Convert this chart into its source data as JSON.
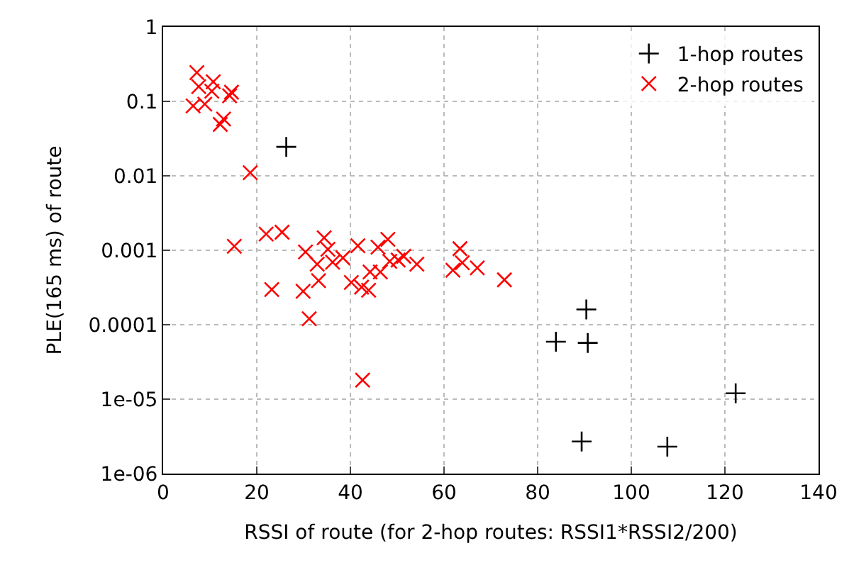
{
  "chart_data": {
    "type": "scatter",
    "xlabel": "RSSI of route (for 2-hop routes: RSSI1*RSSI2/200)",
    "ylabel": "PLE(165 ms) of route",
    "log": "y",
    "grid": true,
    "legend": "top right",
    "xlim": [
      0,
      140
    ],
    "xticks": [
      0,
      20,
      40,
      60,
      80,
      100,
      120,
      140
    ],
    "ylim": [
      1e-06,
      1
    ],
    "yticks": [
      {
        "value": 1e-06,
        "label": "1e-06"
      },
      {
        "value": 1e-05,
        "label": "1e-05"
      },
      {
        "value": 0.0001,
        "label": "0.0001"
      },
      {
        "value": 0.001,
        "label": "0.001"
      },
      {
        "value": 0.01,
        "label": "0.01"
      },
      {
        "value": 0.1,
        "label": "0.1"
      },
      {
        "value": 1,
        "label": "1"
      }
    ],
    "series": [
      {
        "name": "1-hop routes",
        "color": "#000000",
        "marker": "cross",
        "x": [
          26.3,
          90.4,
          83.9,
          90.7,
          122.3,
          89.4,
          107.7
        ],
        "values": [
          0.0245,
          0.00016,
          5.9e-05,
          5.7e-05,
          1.2e-05,
          2.7e-06,
          2.3e-06
        ]
      },
      {
        "name": "2-hop routes",
        "color": "#ff0000",
        "marker": "x",
        "x": [
          7.2,
          7.6,
          10.7,
          10.4,
          6.4,
          8.9,
          14.2,
          14.6,
          12.9,
          12.2,
          18.6,
          15.2,
          22.0,
          25.4,
          23.2,
          30.4,
          29.9,
          31.2,
          32.9,
          33.2,
          34.4,
          35.2,
          36.2,
          38.4,
          40.2,
          41.6,
          42.4,
          43.9,
          44.2,
          46.4,
          45.9,
          48.0,
          48.4,
          50.2,
          51.4,
          54.2,
          61.9,
          63.4,
          63.9,
          67.1,
          72.9,
          42.6
        ],
        "values": [
          0.244,
          0.158,
          0.183,
          0.137,
          0.087,
          0.092,
          0.119,
          0.133,
          0.058,
          0.049,
          0.011,
          0.00113,
          0.00165,
          0.00175,
          0.000297,
          0.00095,
          0.000281,
          0.00012,
          0.00065,
          0.00039,
          0.00147,
          0.00103,
          0.00069,
          0.00079,
          0.00037,
          0.00115,
          0.00032,
          0.00029,
          0.00051,
          0.00051,
          0.0011,
          0.0014,
          0.00071,
          0.00074,
          0.00083,
          0.00065,
          0.00054,
          0.00105,
          0.00068,
          0.00058,
          0.0004,
          1.8e-05
        ]
      }
    ]
  }
}
